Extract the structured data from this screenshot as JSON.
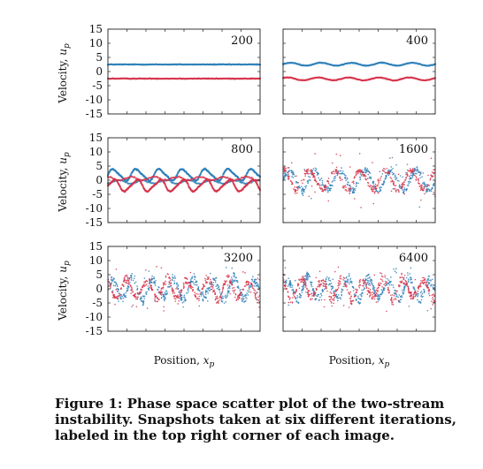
{
  "figure": {
    "caption": "Figure 1: Phase space scatter plot of the two-stream instability. Snapshots taken at six different iterations, labeled in the top right corner of each image."
  },
  "colors": {
    "stream_a": "#2b7fb8",
    "stream_b": "#d6324a",
    "axis": "#222222"
  },
  "chart_data": [
    {
      "type": "scatter",
      "label": "200",
      "ylabel": "Velocity, u_p",
      "xlabel": "",
      "ylim": [
        -15,
        15
      ],
      "yticks": [
        15,
        10,
        5,
        0,
        -5,
        -10,
        -15
      ],
      "xlim": [
        0,
        1
      ],
      "series": [
        {
          "color": "#2b7fb8",
          "pattern": "flat",
          "center": 2.5,
          "amp": 0.1
        },
        {
          "color": "#d6324a",
          "pattern": "flat",
          "center": -2.5,
          "amp": 0.1
        }
      ]
    },
    {
      "type": "scatter",
      "label": "400",
      "ylabel": "",
      "xlabel": "",
      "ylim": [
        -15,
        15
      ],
      "yticks": [],
      "xlim": [
        0,
        1
      ],
      "series": [
        {
          "color": "#2b7fb8",
          "pattern": "wavy",
          "center": 2.6,
          "amp": 0.5
        },
        {
          "color": "#d6324a",
          "pattern": "wavy",
          "center": -2.6,
          "amp": 0.5
        }
      ]
    },
    {
      "type": "scatter",
      "label": "800",
      "ylabel": "Velocity, u_p",
      "xlabel": "",
      "ylim": [
        -15,
        15
      ],
      "yticks": [
        15,
        10,
        5,
        0,
        -5,
        -10,
        -15
      ],
      "xlim": [
        0,
        1
      ],
      "series": [
        {
          "color": "#2b7fb8",
          "pattern": "rolled",
          "center": 0,
          "amp": 4.5
        },
        {
          "color": "#d6324a",
          "pattern": "rolled",
          "center": 0,
          "amp": 4.5
        }
      ]
    },
    {
      "type": "scatter",
      "label": "1600",
      "ylabel": "",
      "xlabel": "",
      "ylim": [
        -15,
        15
      ],
      "yticks": [],
      "xlim": [
        0,
        1
      ],
      "series": [
        {
          "color": "#2b7fb8",
          "pattern": "mixed",
          "center": 0,
          "amp": 5
        },
        {
          "color": "#d6324a",
          "pattern": "mixed",
          "center": 0,
          "amp": 5
        }
      ]
    },
    {
      "type": "scatter",
      "label": "3200",
      "ylabel": "Velocity, u_p",
      "xlabel": "Position, x_p",
      "ylim": [
        -15,
        15
      ],
      "yticks": [
        15,
        10,
        5,
        0,
        -5,
        -10,
        -15
      ],
      "xlim": [
        0,
        1
      ],
      "series": [
        {
          "color": "#2b7fb8",
          "pattern": "turbulent",
          "center": 0,
          "amp": 5
        },
        {
          "color": "#d6324a",
          "pattern": "turbulent",
          "center": 0,
          "amp": 5
        }
      ]
    },
    {
      "type": "scatter",
      "label": "6400",
      "ylabel": "",
      "xlabel": "Position, x_p",
      "ylim": [
        -15,
        15
      ],
      "yticks": [],
      "xlim": [
        0,
        1
      ],
      "series": [
        {
          "color": "#2b7fb8",
          "pattern": "turbulent",
          "center": 0,
          "amp": 5
        },
        {
          "color": "#d6324a",
          "pattern": "turbulent",
          "center": 0,
          "amp": 5
        }
      ]
    }
  ]
}
